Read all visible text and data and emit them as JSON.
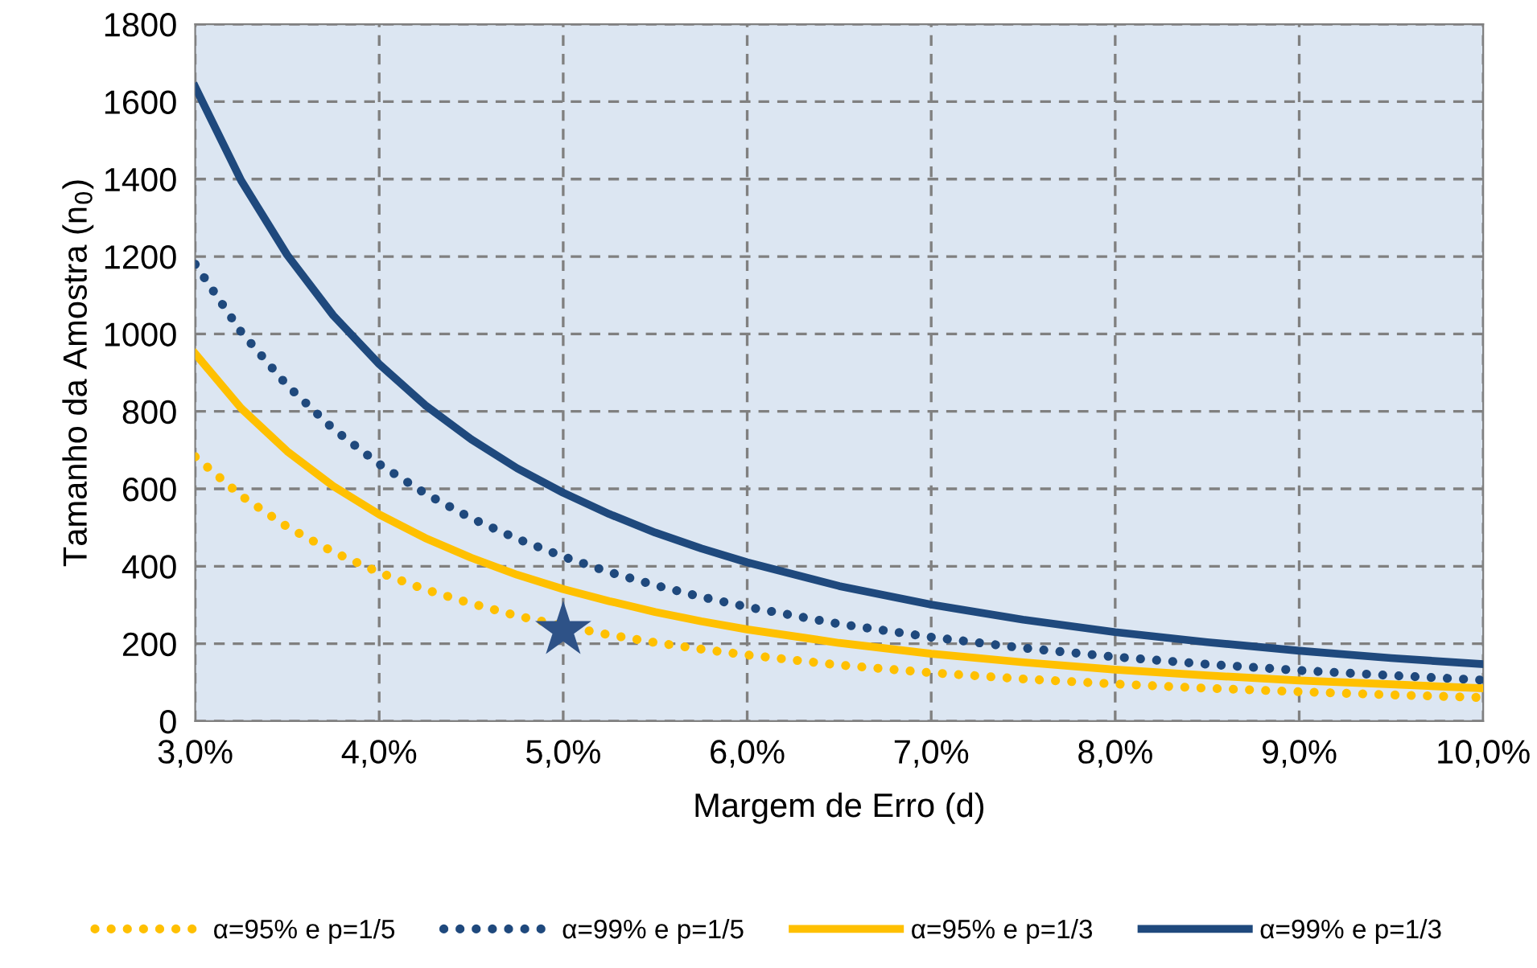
{
  "chart_data": {
    "type": "line",
    "xlabel": "Margem de Erro (d)",
    "ylabel": "Tamanho da Amostra (n$_{0}$)",
    "x": [
      3,
      3.25,
      3.5,
      3.75,
      4,
      4.25,
      4.5,
      4.75,
      5,
      5.25,
      5.5,
      5.75,
      6,
      6.5,
      7,
      7.5,
      8,
      8.5,
      9,
      9.5,
      10
    ],
    "series": [
      {
        "name": "α=95% e p=1/5",
        "color": "#ffc000",
        "line_style": "dotted",
        "values": [
          683,
          582,
          502,
          437,
          384,
          340,
          304,
          272,
          246,
          223,
          203,
          186,
          171,
          145,
          125,
          109,
          96,
          85,
          76,
          68,
          61
        ]
      },
      {
        "name": "α=99% e p=1/5",
        "color": "#1f497d",
        "line_style": "dotted",
        "values": [
          1180,
          1005,
          867,
          755,
          664,
          588,
          524,
          471,
          425,
          385,
          351,
          321,
          295,
          251,
          217,
          189,
          166,
          147,
          131,
          118,
          106
        ]
      },
      {
        "name": "α=95% e p=1/3",
        "color": "#ffc000",
        "line_style": "solid",
        "values": [
          949,
          808,
          697,
          607,
          534,
          473,
          422,
          378,
          341,
          310,
          282,
          258,
          237,
          202,
          174,
          152,
          133,
          118,
          105,
          95,
          85
        ]
      },
      {
        "name": "α=99% e p=1/3",
        "color": "#1f497d",
        "line_style": "solid",
        "values": [
          1638,
          1396,
          1204,
          1048,
          922,
          816,
          728,
          653,
          590,
          535,
          487,
          446,
          410,
          349,
          301,
          262,
          230,
          204,
          182,
          163,
          147
        ]
      },
      {
        "type": "scatter",
        "marker": "star",
        "color": "#2e5287",
        "x": [
          5
        ],
        "values": [
          235
        ]
      }
    ],
    "xlim": [
      3,
      10
    ],
    "xticks": [
      {
        "value": 3,
        "label": "3,0%"
      },
      {
        "value": 4,
        "label": "4,0%"
      },
      {
        "value": 5,
        "label": "5,0%"
      },
      {
        "value": 6,
        "label": "6,0%"
      },
      {
        "value": 7,
        "label": "7,0%"
      },
      {
        "value": 8,
        "label": "8,0%"
      },
      {
        "value": 9,
        "label": "9,0%"
      },
      {
        "value": 10,
        "label": "10,0%"
      }
    ],
    "ylim": [
      0,
      1800
    ],
    "yticks": [
      0,
      200,
      400,
      600,
      800,
      1000,
      1200,
      1400,
      1600,
      1800
    ],
    "grid": true,
    "legend": "bottom",
    "marker": "none"
  }
}
